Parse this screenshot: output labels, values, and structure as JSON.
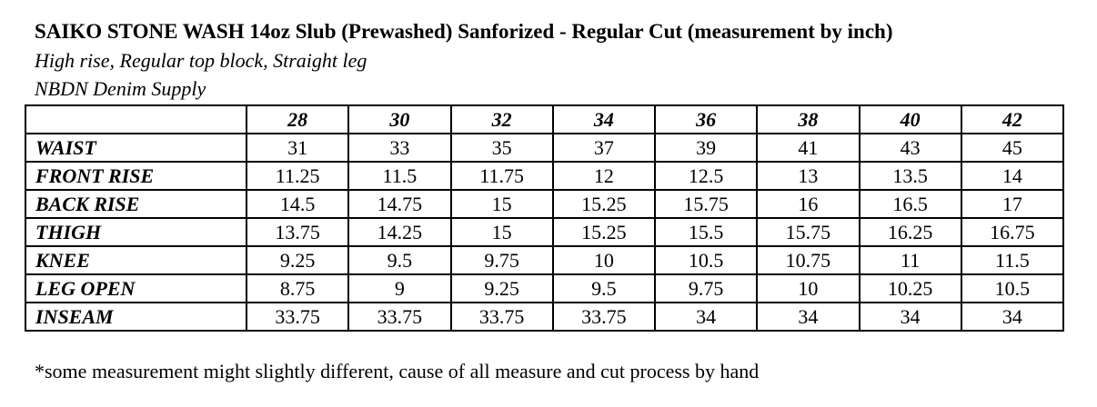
{
  "header": {
    "title": "SAIKO STONE WASH 14oz Slub (Prewashed) Sanforized - Regular Cut (measurement by inch)",
    "subtitle": "High rise, Regular top block, Straight leg",
    "brand": "NBDN Denim Supply"
  },
  "table": {
    "columns": [
      "28",
      "30",
      "32",
      "34",
      "36",
      "38",
      "40",
      "42"
    ],
    "rows": [
      {
        "label": "WAIST",
        "cells": [
          "31",
          "33",
          "35",
          "37",
          "39",
          "41",
          "43",
          "45"
        ]
      },
      {
        "label": "FRONT RISE",
        "cells": [
          "11.25",
          "11.5",
          "11.75",
          "12",
          "12.5",
          "13",
          "13.5",
          "14"
        ]
      },
      {
        "label": "BACK RISE",
        "cells": [
          "14.5",
          "14.75",
          "15",
          "15.25",
          "15.75",
          "16",
          "16.5",
          "17"
        ]
      },
      {
        "label": "THIGH",
        "cells": [
          "13.75",
          "14.25",
          "15",
          "15.25",
          "15.5",
          "15.75",
          "16.25",
          "16.75"
        ]
      },
      {
        "label": "KNEE",
        "cells": [
          "9.25",
          "9.5",
          "9.75",
          "10",
          "10.5",
          "10.75",
          "11",
          "11.5"
        ]
      },
      {
        "label": "LEG OPEN",
        "cells": [
          "8.75",
          "9",
          "9.25",
          "9.5",
          "9.75",
          "10",
          "10.25",
          "10.5"
        ]
      },
      {
        "label": "INSEAM",
        "cells": [
          "33.75",
          "33.75",
          "33.75",
          "33.75",
          "34",
          "34",
          "34",
          "34"
        ]
      }
    ]
  },
  "footnote": "*some measurement might slightly different, cause of all measure and cut process by hand"
}
